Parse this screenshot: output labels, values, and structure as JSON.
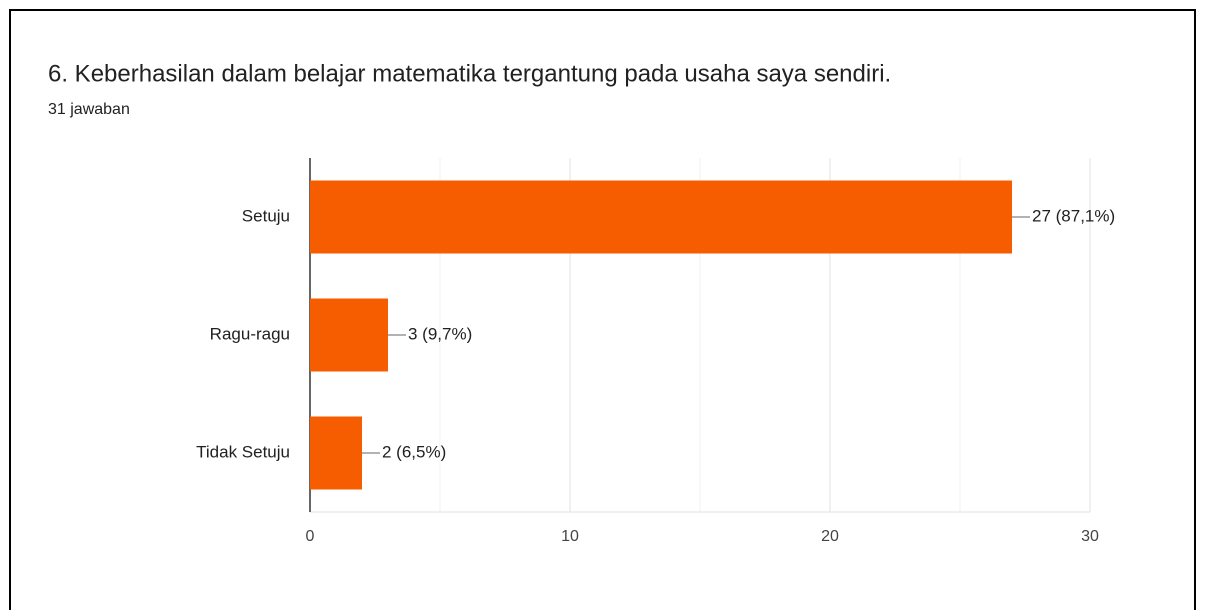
{
  "chart_data": {
    "type": "hbar",
    "title": "6. Keberhasilan dalam belajar matematika tergantung pada usaha saya sendiri.",
    "subtitle": "31 jawaban",
    "categories": [
      "Setuju",
      "Ragu-ragu",
      "Tidak Setuju"
    ],
    "values": [
      27,
      3,
      2
    ],
    "value_labels": [
      "27 (87,1%)",
      "3 (9,7%)",
      "2 (6,5%)"
    ],
    "color": "#f65c00",
    "xlim": [
      0,
      30
    ],
    "xticks": [
      0,
      10,
      20,
      30
    ],
    "minor_xticks": [
      5,
      15,
      25
    ],
    "grid": true
  }
}
